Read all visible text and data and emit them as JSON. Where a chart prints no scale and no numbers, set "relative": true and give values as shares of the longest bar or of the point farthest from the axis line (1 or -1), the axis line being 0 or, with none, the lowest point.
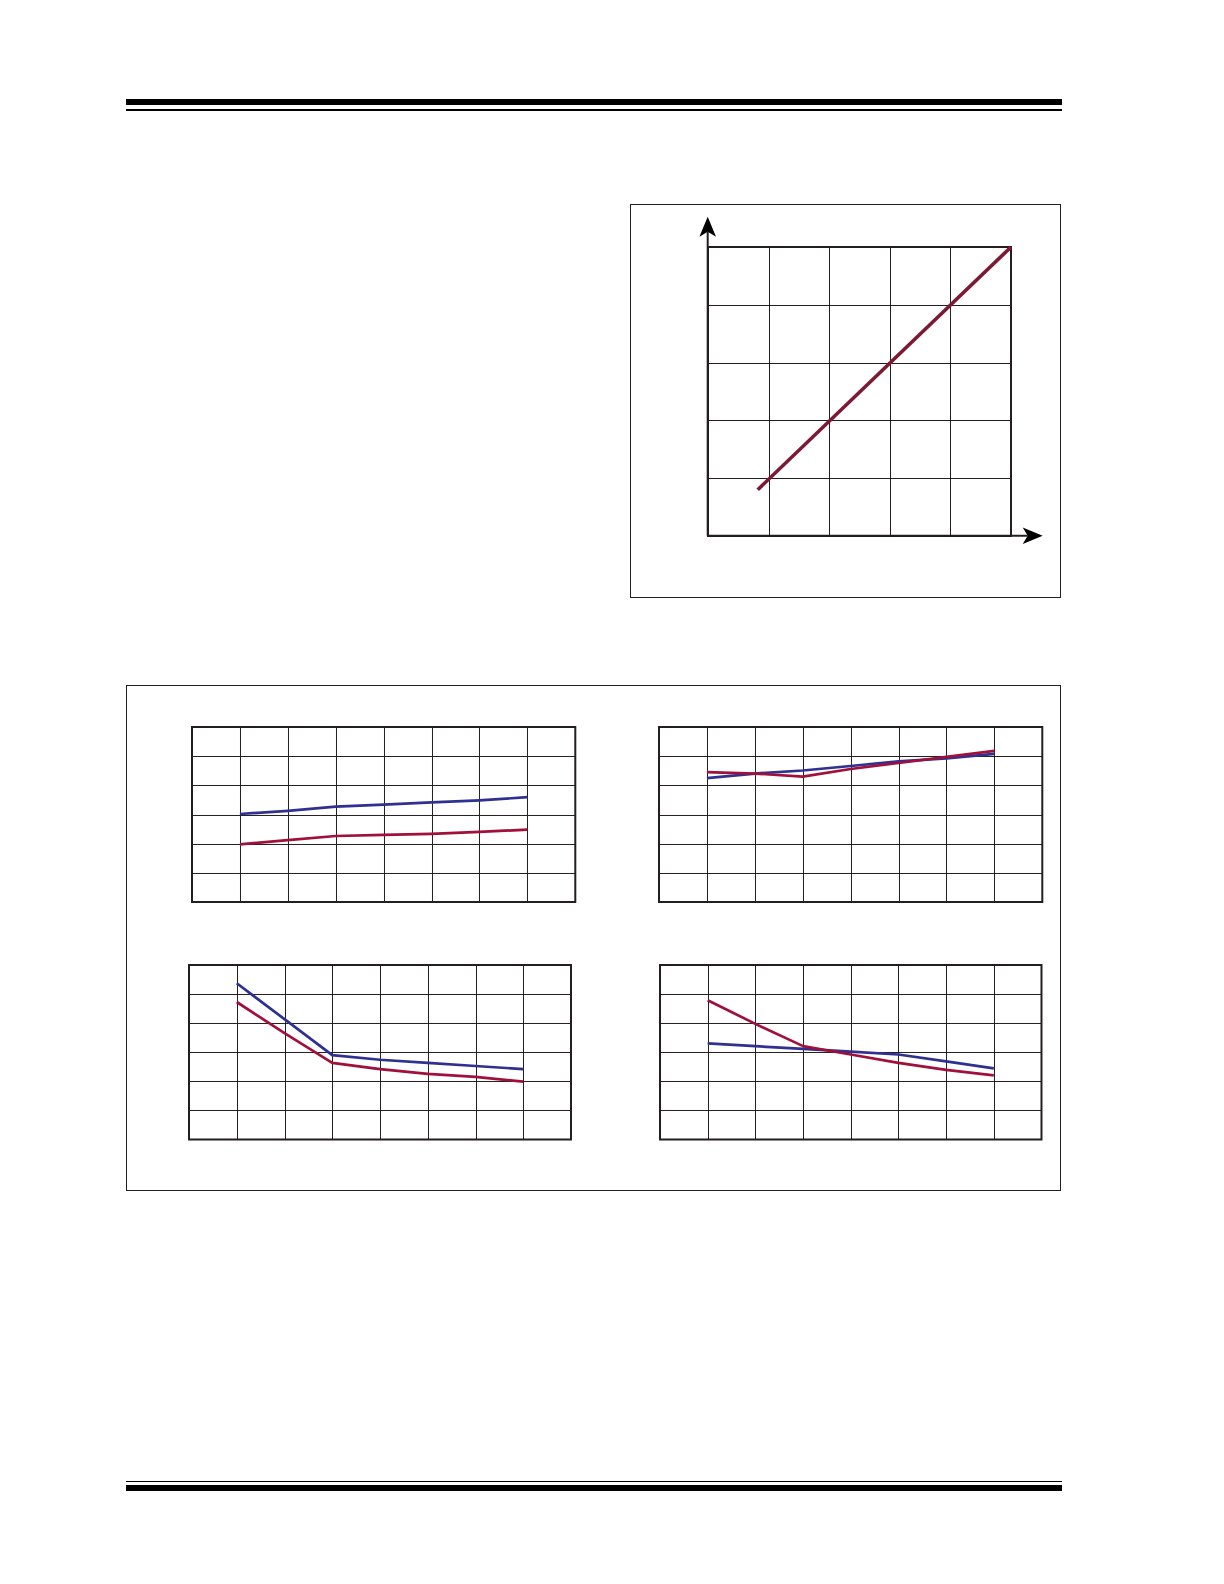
{
  "chart_data": [
    {
      "type": "line",
      "relative": true,
      "grid": true,
      "categories": [
        null,
        null
      ],
      "series": [
        {
          "color": "#7c1a35",
          "values": [
            0.16,
            1
          ]
        }
      ]
    },
    {
      "type": "line",
      "relative": true,
      "grid": true,
      "categories": [
        null,
        null,
        null,
        null,
        null,
        null,
        null
      ],
      "series": [
        {
          "color": "#2e3192",
          "values": [
            0.84,
            0.87,
            0.91,
            0.93,
            0.95,
            0.97,
            1
          ]
        },
        {
          "color": "#a0103a",
          "values": [
            0.55,
            0.59,
            0.63,
            0.64,
            0.65,
            0.67,
            0.69
          ]
        }
      ]
    },
    {
      "type": "line",
      "relative": true,
      "grid": true,
      "categories": [
        null,
        null,
        null,
        null,
        null,
        null,
        null
      ],
      "series": [
        {
          "color": "#2e3192",
          "values": [
            0.82,
            0.85,
            0.87,
            0.9,
            0.93,
            0.95,
            0.98
          ]
        },
        {
          "color": "#a0103a",
          "values": [
            0.86,
            0.85,
            0.83,
            0.88,
            0.92,
            0.96,
            1
          ]
        }
      ]
    },
    {
      "type": "line",
      "relative": true,
      "grid": true,
      "categories": [
        null,
        null,
        null,
        null,
        null,
        null,
        null
      ],
      "series": [
        {
          "color": "#2e3192",
          "values": [
            1,
            0.77,
            0.54,
            0.51,
            0.49,
            0.47,
            0.45
          ]
        },
        {
          "color": "#a0103a",
          "values": [
            0.88,
            0.68,
            0.49,
            0.45,
            0.42,
            0.4,
            0.37
          ]
        }
      ]
    },
    {
      "type": "line",
      "relative": true,
      "grid": true,
      "categories": [
        null,
        null,
        null,
        null,
        null,
        null,
        null
      ],
      "series": [
        {
          "color": "#2e3192",
          "values": [
            0.69,
            0.67,
            0.65,
            0.63,
            0.61,
            0.56,
            0.51
          ]
        },
        {
          "color": "#a0103a",
          "values": [
            1,
            0.83,
            0.67,
            0.61,
            0.55,
            0.5,
            0.46
          ]
        }
      ]
    }
  ]
}
